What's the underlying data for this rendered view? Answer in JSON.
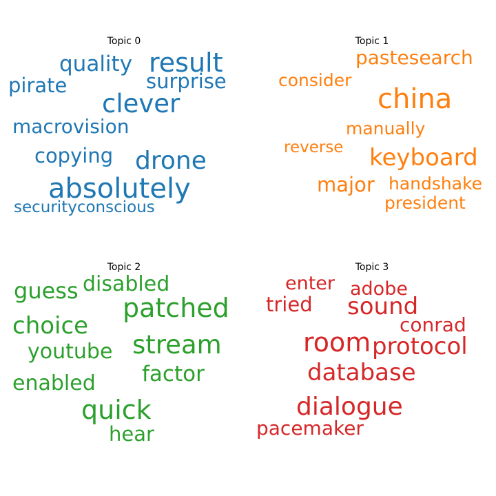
{
  "colors": {
    "topic0": "#1f77b4",
    "topic1": "#ff7f0e",
    "topic2": "#2ca02c",
    "topic3": "#d62728"
  },
  "topics": [
    {
      "title": "Topic 0",
      "words": [
        "quality",
        "result",
        "pirate",
        "surprise",
        "clever",
        "macrovision",
        "copying",
        "drone",
        "absolutely",
        "securityconscious"
      ]
    },
    {
      "title": "Topic 1",
      "words": [
        "pastesearch",
        "consider",
        "china",
        "manually",
        "reverse",
        "keyboard",
        "major",
        "handshake",
        "president"
      ]
    },
    {
      "title": "Topic 2",
      "words": [
        "guess",
        "disabled",
        "patched",
        "choice",
        "stream",
        "youtube",
        "enabled",
        "factor",
        "quick",
        "hear"
      ]
    },
    {
      "title": "Topic 3",
      "words": [
        "enter",
        "adobe",
        "tried",
        "sound",
        "conrad",
        "room",
        "protocol",
        "database",
        "dialogue",
        "pacemaker"
      ]
    }
  ]
}
